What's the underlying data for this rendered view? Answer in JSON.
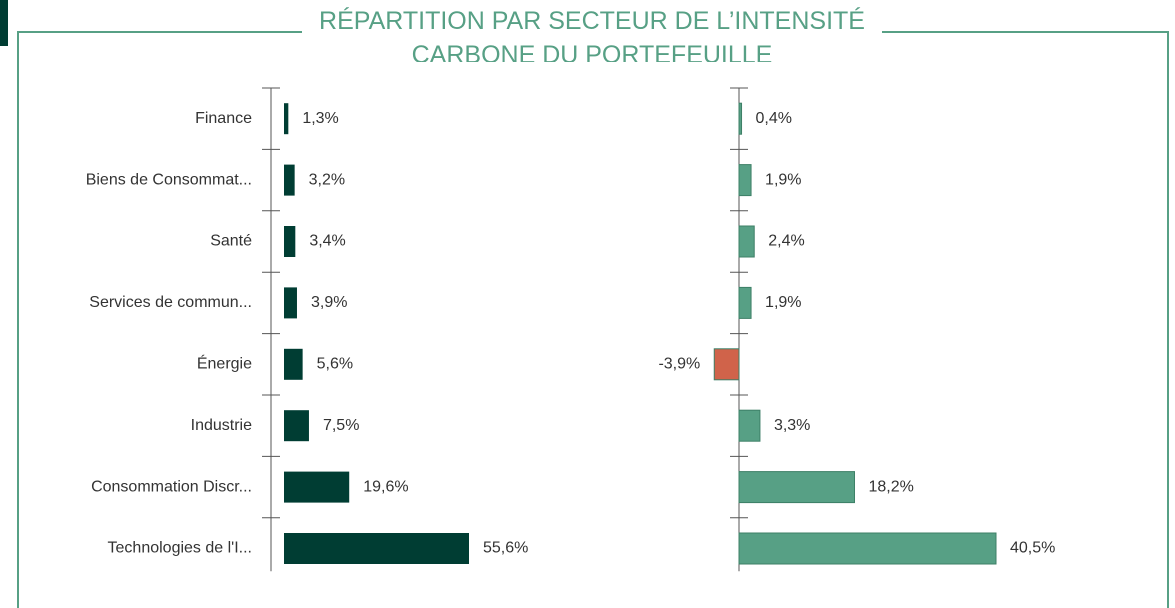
{
  "chart_data": {
    "type": "bar",
    "title": "RÉPARTITION PAR SECTEUR DE L’INTENSITÉ CARBONE DU PORTEFEUILLE",
    "categories": [
      "Finance",
      "Biens de Consommat...",
      "Santé",
      "Services de commun...",
      "Énergie",
      "Industrie",
      "Consommation Discr...",
      "Technologies de l'I..."
    ],
    "series": [
      {
        "color": "#003d33",
        "values": [
          1.3,
          3.2,
          3.4,
          3.9,
          5.6,
          7.5,
          19.6,
          55.6
        ],
        "value_labels": [
          "1,3%",
          "3,2%",
          "3,4%",
          "3,9%",
          "5,6%",
          "7,5%",
          "19,6%",
          "55,6%"
        ]
      },
      {
        "color": "#57a085",
        "negative_color": "#d0634a",
        "values": [
          0.4,
          1.9,
          2.4,
          1.9,
          -3.9,
          3.3,
          18.2,
          40.5
        ],
        "value_labels": [
          "0,4%",
          "1,9%",
          "2,4%",
          "1,9%",
          "-3,9%",
          "3,3%",
          "18,2%",
          "40,5%"
        ]
      }
    ]
  }
}
